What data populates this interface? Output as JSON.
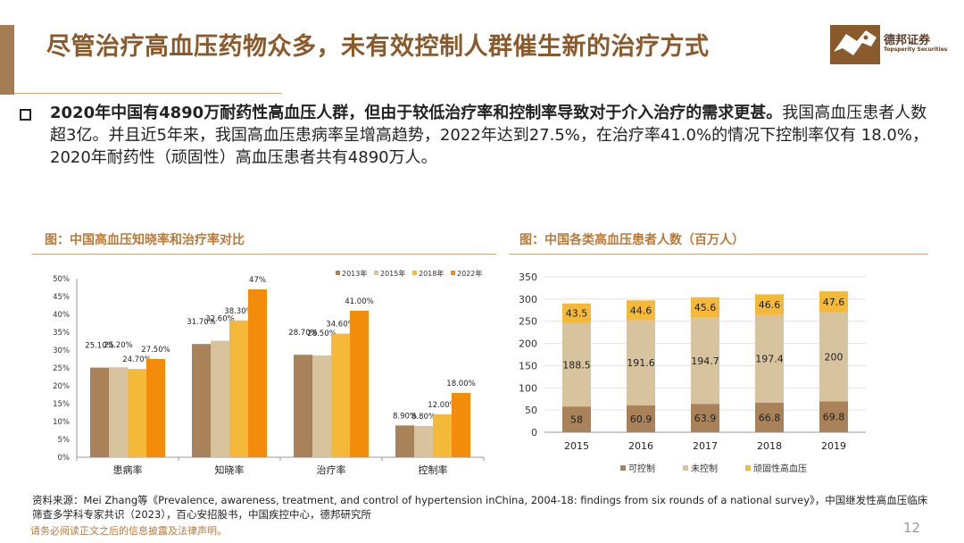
{
  "header": {
    "title": "尽管治疗高血压药物众多，未有效控制人群催生新的治疗方式",
    "logo_cn": "德邦证券",
    "logo_en": "Topsperity Securities"
  },
  "summary": {
    "bold": "2020年中国有4890万耐药性高血压人群，但由于较低治疗率和控制率导致对于介入治疗的需求更甚。",
    "rest": "我国高血压患者人数超3亿。并且近5年来，我国高血压患病率呈增高趋势，2022年达到27.5%，在治疗率41.0%的情况下控制率仅有 18.0%，2020年耐药性（顽固性）高血压患者共有4890万人。"
  },
  "figures": {
    "left_title": "图：中国高血压知晓率和治疗率对比",
    "right_title": "图：中国各类高血压患者人数（百万人）"
  },
  "chart_data": [
    {
      "type": "bar",
      "categories": [
        "患病率",
        "知晓率",
        "治疗率",
        "控制率"
      ],
      "series": [
        {
          "name": "2013年",
          "values": [
            25.1,
            31.7,
            28.7,
            8.9
          ],
          "labels": [
            "25.10%",
            "31.70%",
            "28.70%",
            "8.90%"
          ],
          "color": "#A9825A"
        },
        {
          "name": "2015年",
          "values": [
            25.2,
            32.6,
            28.5,
            8.8
          ],
          "labels": [
            "25.20%",
            "32.60%",
            "28.50%",
            "8.80%"
          ],
          "color": "#D8C39F"
        },
        {
          "name": "2018年",
          "values": [
            24.7,
            38.3,
            34.6,
            12.0
          ],
          "labels": [
            "24.70%",
            "38.30%",
            "34.60%",
            "12.00%"
          ],
          "color": "#F5B93A"
        },
        {
          "name": "2022年",
          "values": [
            27.5,
            47.0,
            41.0,
            18.0
          ],
          "labels": [
            "27.50%",
            "47%",
            "41.00%",
            "18.00%"
          ],
          "color": "#F28C0A"
        }
      ],
      "ylim": [
        0,
        50
      ],
      "yticks": [
        "0%",
        "5%",
        "10%",
        "15%",
        "20%",
        "25%",
        "30%",
        "35%",
        "40%",
        "45%",
        "50%"
      ],
      "legend_position": "top-right",
      "grid": false
    },
    {
      "type": "bar",
      "stacked": true,
      "categories": [
        "2015",
        "2016",
        "2017",
        "2018",
        "2019"
      ],
      "series": [
        {
          "name": "可控制",
          "values": [
            58,
            60.9,
            63.9,
            66.8,
            69.8
          ],
          "labels": [
            "58",
            "60.9",
            "63.9",
            "66.8",
            "69.8"
          ],
          "color": "#A9825A"
        },
        {
          "name": "未控制",
          "values": [
            188.5,
            191.6,
            194.7,
            197.4,
            200
          ],
          "labels": [
            "188.5",
            "191.6",
            "194.7",
            "197.4",
            "200"
          ],
          "color": "#D8C39F"
        },
        {
          "name": "顽固性高血压",
          "values": [
            43.5,
            44.6,
            45.6,
            46.6,
            47.6
          ],
          "labels": [
            "43.5",
            "44.6",
            "45.6",
            "46.6",
            "47.6"
          ],
          "color": "#F5B93A"
        }
      ],
      "ylim": [
        0,
        350
      ],
      "yticks": [
        "0",
        "50",
        "100",
        "150",
        "200",
        "250",
        "300",
        "350"
      ],
      "legend_position": "bottom",
      "grid": true
    }
  ],
  "source": "资料来源：Mei Zhang等《Prevalence, awareness, treatment, and control of hypertension inChina, 2004-18: findings from six rounds of a national survey》，中国继发性高血压临床筛查多学科专家共识（2023），百心安招股书，中国疾控中心，德邦研究所",
  "footer": {
    "disclaimer": "请务必阅读正文之后的信息披露及法律声明。",
    "page": "12"
  }
}
